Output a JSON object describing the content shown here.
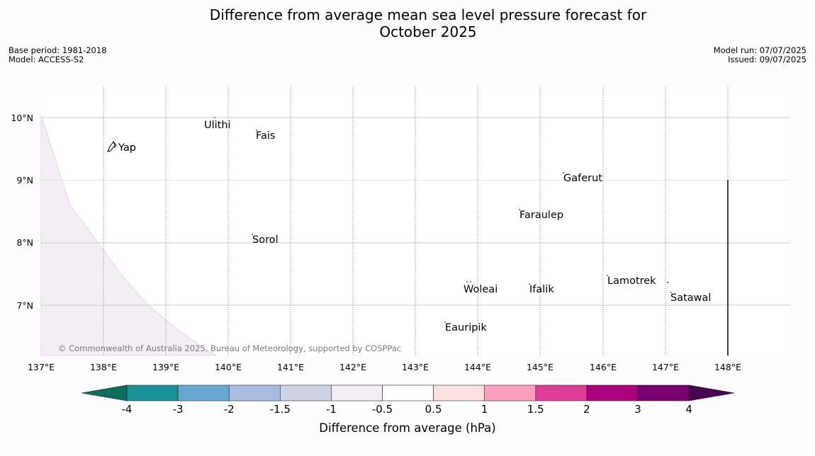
{
  "title_line1": "Difference from average mean sea level pressure forecast for",
  "title_line2": "October 2025",
  "meta_left": {
    "base_period": "Base period: 1981-2018",
    "model": "Model: ACCESS-S2"
  },
  "meta_right": {
    "model_run": "Model run: 07/07/2025",
    "issued": "Issued: 09/07/2025"
  },
  "map": {
    "lon_labels": [
      "137°E",
      "138°E",
      "139°E",
      "140°E",
      "141°E",
      "142°E",
      "143°E",
      "144°E",
      "145°E",
      "146°E",
      "147°E",
      "148°E"
    ],
    "lat_labels": [
      "10°N",
      "9°N",
      "8°N",
      "7°N"
    ],
    "places": [
      "Ulithi",
      "Fais",
      "Yap",
      "Gaferut",
      "Faraulep",
      "Sorol",
      "Lamotrek",
      "Woleai",
      "Ifalik",
      "Satawal",
      "Eauripik"
    ],
    "shaded_region_category": "-1 to -0.5",
    "credit": "© Commonwealth of Australia 2025, Bureau of Meteorology, supported by COSPPac"
  },
  "colorbar": {
    "label": "Difference from average (hPa)",
    "ticks": [
      "-4",
      "-3",
      "-2",
      "-1.5",
      "-1",
      "-0.5",
      "0.5",
      "1",
      "1.5",
      "2",
      "3",
      "4"
    ],
    "colors": [
      "#0c6e5e",
      "#1a9097",
      "#66a8d1",
      "#a8bce0",
      "#d0d3e6",
      "#f4edf6",
      "#ffffff",
      "#fde0e0",
      "#f8a0bc",
      "#de3e98",
      "#ad007d",
      "#790071",
      "#4a0051"
    ]
  }
}
